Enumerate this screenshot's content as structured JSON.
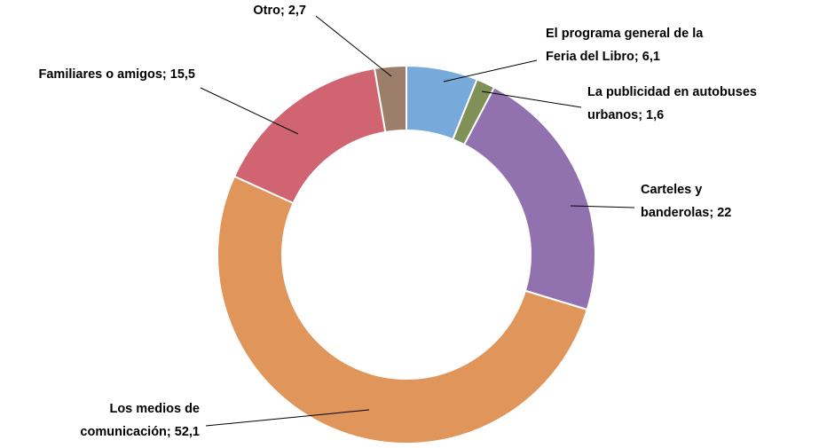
{
  "chart_data": {
    "type": "donut",
    "values": [
      6.1,
      1.6,
      22,
      52.1,
      15.5,
      2.7
    ],
    "value_labels": [
      [
        "El programa general de la",
        "Feria del Libro; 6,1"
      ],
      [
        "La publicidad en autobuses",
        "urbanos; 1,6"
      ],
      [
        "Carteles y",
        "banderolas; 22"
      ],
      [
        "Los medios de",
        "comunicación; 52,1"
      ],
      [
        "Familiares o amigos; 15,5"
      ],
      [
        "Otro; 2,7"
      ]
    ],
    "colors": [
      "#77a9db",
      "#7f9156",
      "#9272ae",
      "#e0955a",
      "#d06470",
      "#9c7e6a"
    ]
  }
}
